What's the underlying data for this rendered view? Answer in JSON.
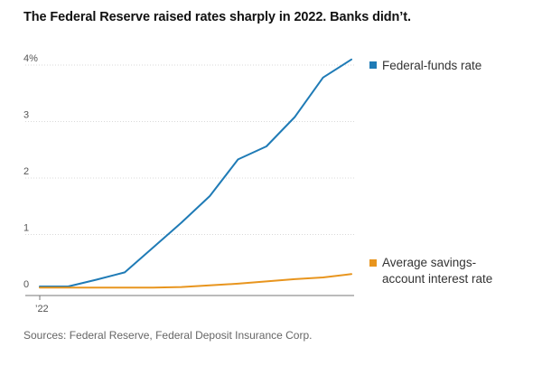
{
  "title": "The Federal Reserve raised rates sharply in 2022. Banks didn’t.",
  "source": "Sources: Federal Reserve, Federal Deposit Insurance Corp.",
  "chart_data": {
    "type": "line",
    "title": "The Federal Reserve raised rates sharply in 2022. Banks didn’t.",
    "xlabel": "",
    "ylabel": "",
    "x_tick_labels": [
      "’22"
    ],
    "y_ticks": [
      0,
      1,
      2,
      3,
      4
    ],
    "y_tick_labels": [
      "0",
      "1",
      "2",
      "3",
      "4%"
    ],
    "ylim": [
      0,
      4.3
    ],
    "xlim": [
      0,
      11
    ],
    "grid": true,
    "legend_position": "right, beside line ends",
    "x": [
      0,
      1,
      2,
      3,
      4,
      5,
      6,
      7,
      8,
      9,
      10,
      11
    ],
    "series": [
      {
        "name": "Federal-funds rate",
        "color": "#1f7bb6",
        "values": [
          0.08,
          0.08,
          0.2,
          0.33,
          0.77,
          1.21,
          1.68,
          2.33,
          2.56,
          3.08,
          3.78,
          4.1
        ]
      },
      {
        "name": "Average savings-account interest rate",
        "legend_lines": [
          "Average savings-",
          "account interest rate"
        ],
        "color": "#e8951e",
        "values": [
          0.06,
          0.06,
          0.06,
          0.06,
          0.06,
          0.07,
          0.1,
          0.13,
          0.17,
          0.21,
          0.24,
          0.3
        ]
      }
    ]
  }
}
